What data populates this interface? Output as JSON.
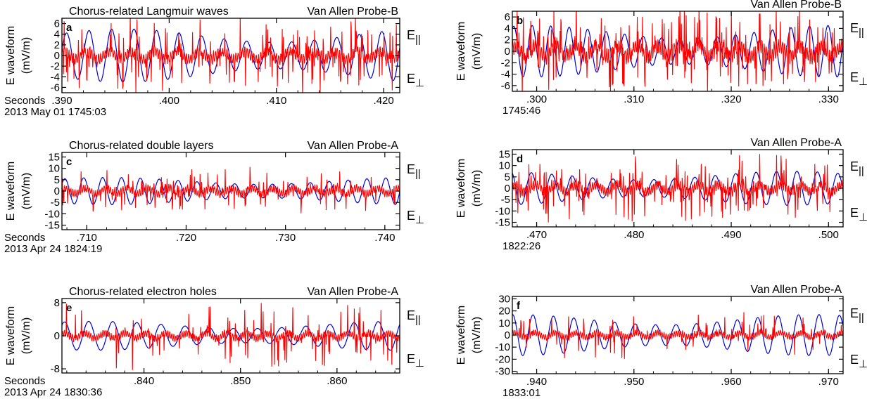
{
  "colors": {
    "parallel": "#ff0000",
    "perpendicular": "#0000cc",
    "axis": "#000000"
  },
  "ylabel_top": "E waveform",
  "ylabel_unit": "(mV/m)",
  "legend": {
    "parallel": "E||",
    "perpendicular": "E⊥"
  },
  "chart_data": [
    {
      "panel": "a",
      "type": "line",
      "title": "Chorus-related Langmuir waves",
      "probe": "Van Allen Probe-B",
      "xlabel_prefix": "Seconds",
      "date": "2013 May 01 1745:03",
      "xlim": [
        0.39,
        0.4215
      ],
      "xticks": [
        ".390",
        ".400",
        ".410",
        ".420"
      ],
      "xtick_values": [
        0.39,
        0.4,
        0.41,
        0.42
      ],
      "ylim": [
        -7,
        7
      ],
      "yticks": [
        "6",
        "4",
        "2",
        "0",
        "-2",
        "-4",
        "-6"
      ],
      "ytick_values": [
        6,
        4,
        2,
        0,
        -2,
        -4,
        -6
      ],
      "series": [
        {
          "key": "perpendicular",
          "amplitude": 5.0,
          "period_s": 0.0021,
          "phase": 0.3
        },
        {
          "key": "parallel",
          "amplitude": 1.2,
          "burst_amplitude": 6.5,
          "burst_rate": 0.18
        }
      ]
    },
    {
      "panel": "b",
      "type": "line",
      "title": "",
      "probe": "Van Allen Probe-B",
      "xlabel_prefix": "",
      "date": "1745:46",
      "xlim": [
        0.2975,
        0.3315
      ],
      "xticks": [
        ".300",
        ".310",
        ".320",
        ".330"
      ],
      "xtick_values": [
        0.3,
        0.31,
        0.32,
        0.33
      ],
      "ylim": [
        -7,
        7
      ],
      "yticks": [
        "6",
        "4",
        "2",
        "0",
        "-2",
        "-4",
        "-6"
      ],
      "ytick_values": [
        6,
        4,
        2,
        0,
        -2,
        -4,
        -6
      ],
      "series": [
        {
          "key": "perpendicular",
          "amplitude": 4.5,
          "period_s": 0.0019,
          "phase": 1.1
        },
        {
          "key": "parallel",
          "amplitude": 1.5,
          "burst_amplitude": 7.0,
          "burst_rate": 0.22
        }
      ]
    },
    {
      "panel": "c",
      "type": "line",
      "title": "Chorus-related double layers",
      "probe": "Van Allen Probe-A",
      "xlabel_prefix": "Seconds",
      "date": "2013 Apr 24 1824:19",
      "xlim": [
        0.7075,
        0.7415
      ],
      "xticks": [
        ".710",
        ".720",
        ".730",
        ".740"
      ],
      "xtick_values": [
        0.71,
        0.72,
        0.73,
        0.74
      ],
      "ylim": [
        -17,
        17
      ],
      "yticks": [
        "15",
        "10",
        "5",
        "0",
        "-5",
        "-10",
        "-15"
      ],
      "ytick_values": [
        15,
        10,
        5,
        0,
        -5,
        -10,
        -15
      ],
      "series": [
        {
          "key": "perpendicular",
          "amplitude": 6.0,
          "period_s": 0.0019,
          "phase": 0.6
        },
        {
          "key": "parallel",
          "amplitude": 2.0,
          "burst_amplitude": 9.0,
          "burst_rate": 0.12
        }
      ]
    },
    {
      "panel": "d",
      "type": "line",
      "title": "",
      "probe": "Van Allen Probe-A",
      "xlabel_prefix": "",
      "date": "1822:26",
      "xlim": [
        0.4675,
        0.5015
      ],
      "xticks": [
        ".470",
        ".480",
        ".490",
        ".500"
      ],
      "xtick_values": [
        0.47,
        0.48,
        0.49,
        0.5
      ],
      "ylim": [
        -17,
        17
      ],
      "yticks": [
        "15",
        "10",
        "5",
        "0",
        "-5",
        "-10",
        "-15"
      ],
      "ytick_values": [
        15,
        10,
        5,
        0,
        -5,
        -10,
        -15
      ],
      "series": [
        {
          "key": "perpendicular",
          "amplitude": 7.5,
          "period_s": 0.0021,
          "phase": 2.0
        },
        {
          "key": "parallel",
          "amplitude": 2.5,
          "burst_amplitude": 13.0,
          "burst_rate": 0.2
        }
      ]
    },
    {
      "panel": "e",
      "type": "line",
      "title": "Chorus-related electron holes",
      "probe": "Van Allen Probe-A",
      "xlabel_prefix": "Seconds",
      "date": "2013 Apr 24  1830:36",
      "xlim": [
        0.8315,
        0.8665
      ],
      "xticks": [
        ".840",
        ".850",
        ".860"
      ],
      "xtick_values": [
        0.84,
        0.85,
        0.86
      ],
      "ylim": [
        -9,
        9
      ],
      "yticks": [
        "8",
        "0",
        "-8"
      ],
      "ytick_values": [
        8,
        0,
        -8
      ],
      "series": [
        {
          "key": "perpendicular",
          "amplitude": 3.5,
          "period_s": 0.0025,
          "phase": 0.9
        },
        {
          "key": "parallel",
          "amplitude": 1.0,
          "burst_amplitude": 7.5,
          "burst_rate": 0.1
        }
      ]
    },
    {
      "panel": "f",
      "type": "line",
      "title": "",
      "probe": "Van Allen Probe-A",
      "xlabel_prefix": "",
      "date": "1833:01",
      "xlim": [
        0.9375,
        0.9715
      ],
      "xticks": [
        ".940",
        ".950",
        ".960",
        ".970"
      ],
      "xtick_values": [
        0.94,
        0.95,
        0.96,
        0.97
      ],
      "ylim": [
        -32,
        32
      ],
      "yticks": [
        "30",
        "20",
        "10",
        "0",
        "-10",
        "-20",
        "-30"
      ],
      "ytick_values": [
        30,
        20,
        10,
        0,
        -10,
        -20,
        -30
      ],
      "series": [
        {
          "key": "perpendicular",
          "amplitude": 17.0,
          "period_s": 0.0021,
          "phase": 1.5
        },
        {
          "key": "parallel",
          "amplitude": 3.0,
          "burst_amplitude": 20.0,
          "burst_rate": 0.08
        }
      ]
    }
  ]
}
